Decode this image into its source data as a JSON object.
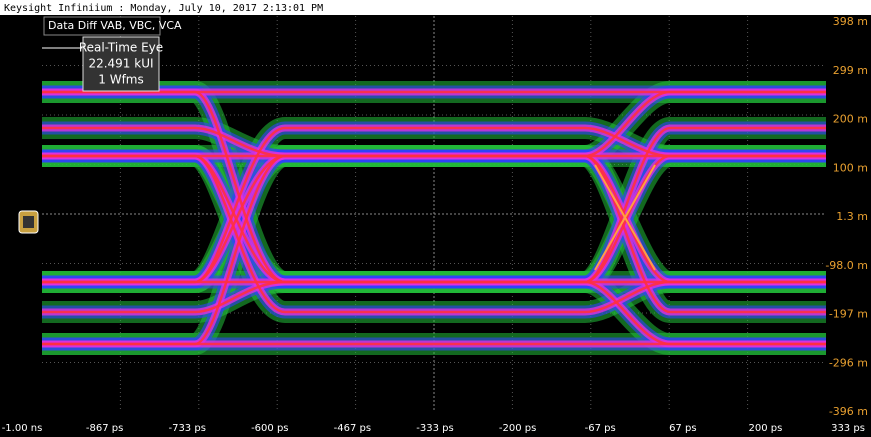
{
  "header": {
    "title": "Keysight Infiniium : Monday, July 10, 2017 2:13:01 PM"
  },
  "channel_label": "Data Diff VAB, VBC, VCA",
  "info_box": {
    "lines": [
      "Real-Time Eye",
      "22.491 kUI",
      "1 Wfms"
    ]
  },
  "y_axis": {
    "labels": [
      "398 m",
      "299 m",
      "200 m",
      "100 m",
      "1.3 m",
      "-98.0 m",
      "-197 m",
      "-296 m",
      "-396 m"
    ]
  },
  "x_axis": {
    "labels": [
      "-1.00 ns",
      "-867 ps",
      "-733 ps",
      "-600 ps",
      "-467 ps",
      "-333 ps",
      "-200 ps",
      "-67 ps",
      "67 ps",
      "200 ps",
      "333 ps"
    ]
  }
}
